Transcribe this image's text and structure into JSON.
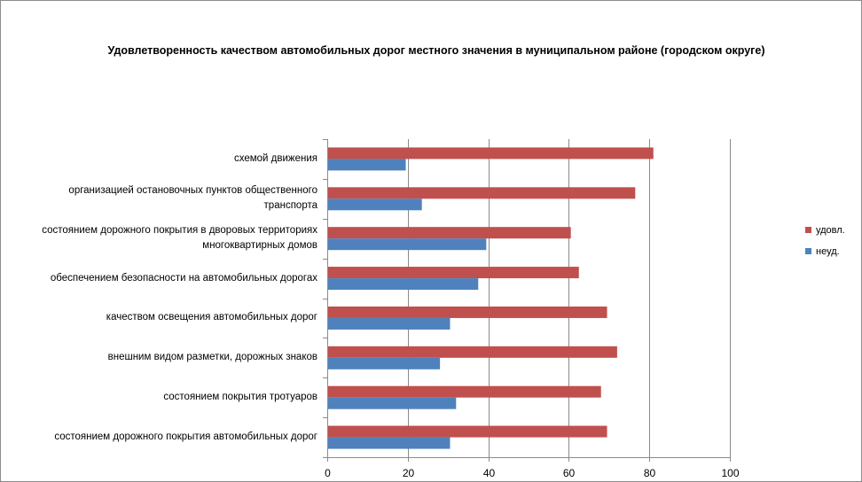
{
  "chart_data": {
    "type": "bar",
    "orientation": "horizontal",
    "title": "Удовлетворенность качеством автомобильных дорог местного значения в муниципальном районе (городском округе)",
    "categories": [
      "схемой движения",
      "организацией остановочных пунктов общественного транспорта",
      "состоянием дорожного покрытия в дворовых территориях многоквартирных домов",
      "обеспечением  безопасности на автомобильных дорогах",
      "качеством  освещения  автомобильных дорог",
      "внешним  видом разметки, дорожных знаков",
      "состоянием  покрытия  тротуаров",
      "состоянием дорожного покрытия автомобильных дорог"
    ],
    "category_lines": [
      [
        "схемой движения"
      ],
      [
        "организацией остановочных пунктов общественного",
        "транспорта"
      ],
      [
        "состоянием дорожного покрытия в дворовых территориях",
        "многоквартирных домов"
      ],
      [
        "обеспечением  безопасности на автомобильных дорогах"
      ],
      [
        "качеством  освещения  автомобильных дорог"
      ],
      [
        "внешним  видом разметки, дорожных знаков"
      ],
      [
        "состоянием  покрытия  тротуаров"
      ],
      [
        "состоянием дорожного покрытия автомобильных дорог"
      ]
    ],
    "series": [
      {
        "name": "удовл.",
        "color": "#c0504d",
        "values": [
          81,
          76.5,
          60.5,
          62.5,
          69.5,
          72,
          68,
          69.5
        ]
      },
      {
        "name": "неуд.",
        "color": "#4f81bd",
        "values": [
          19.5,
          23.5,
          39.5,
          37.5,
          30.5,
          28,
          32,
          30.5
        ]
      }
    ],
    "xlim": [
      0,
      100
    ],
    "xticks": [
      "0",
      "20",
      "40",
      "60",
      "80",
      "100"
    ],
    "xlabel": "",
    "ylabel": "",
    "grid": true,
    "legend": "right"
  }
}
